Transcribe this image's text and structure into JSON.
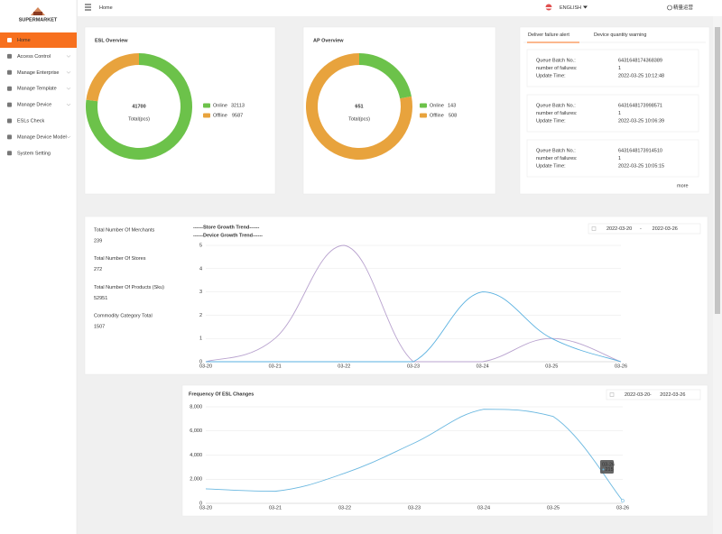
{
  "sidebar": {
    "logo": "SUPERMARKET",
    "menu": [
      "Home",
      "Access Control",
      "Manage Enterprise",
      "Manage Template",
      "Manage Device",
      "ESLs Check",
      "Manage Device Model",
      "System Setting"
    ]
  },
  "header": {
    "breadcrumb": "Home",
    "language": "ENGLISH",
    "user": "精量运营"
  },
  "esl_overview": {
    "title": "ESL Overview",
    "total": 41700,
    "total_label": "Total(pcs)",
    "segments": [
      {
        "name": "Online",
        "value": 32113,
        "color": "#6cc24a"
      },
      {
        "name": "Offline",
        "value": 9587,
        "color": "#e8a33d"
      }
    ]
  },
  "ap_overview": {
    "title": "AP Overview",
    "total": 651,
    "total_label": "Total(pcs)",
    "segments": [
      {
        "name": "Online",
        "value": 143,
        "color": "#6cc24a"
      },
      {
        "name": "Offline",
        "value": 508,
        "color": "#e8a33d"
      }
    ]
  },
  "alerts": {
    "tabs": [
      "Deliver failure alert",
      "Device quantity warning"
    ],
    "field_labels": [
      "Queue Batch No.:",
      "number of failures:",
      "Update Time:"
    ],
    "items": [
      {
        "batch": "6431648174368389",
        "failures": 1,
        "time": "2022-03-25 10:12:48"
      },
      {
        "batch": "6431648173998571",
        "failures": 1,
        "time": "2022-03-25 10:06:39"
      },
      {
        "batch": "6431648173914510",
        "failures": 1,
        "time": "2022-03-25 10:05:15"
      }
    ],
    "more": "more"
  },
  "stats": [
    {
      "label": "Total Number Of Merchants",
      "value": 239
    },
    {
      "label": "Total Number Of Stores",
      "value": 272
    },
    {
      "label": "Total Number Of Products (Sku)",
      "value": 52951
    },
    {
      "label": "Commodity Category Total",
      "value": 1507
    }
  ],
  "growth_chart": {
    "type": "line",
    "date_range": [
      "2022-03-20",
      "2022-03-26"
    ],
    "range_separator": "-",
    "x": [
      "03-20",
      "03-21",
      "03-22",
      "03-23",
      "03-24",
      "03-25",
      "03-26"
    ],
    "series": [
      {
        "name": "------Store Growth Trend------",
        "color": "#b9a3cf",
        "values": [
          0,
          1,
          5,
          0,
          0,
          1,
          0
        ]
      },
      {
        "name": "------Device Growth Trend------",
        "color": "#5ab1e0",
        "values": [
          0,
          0,
          0,
          0,
          3,
          1,
          0
        ]
      }
    ],
    "ylim": [
      0,
      5
    ],
    "yticks": [
      0,
      1,
      2,
      3,
      4,
      5
    ],
    "grid": true
  },
  "frequency_chart": {
    "type": "line",
    "title": "Frequency Of ESL Changes",
    "date_range": [
      "2022-03-20",
      "2022-03-26"
    ],
    "range_separator": "-",
    "x": [
      "03-20",
      "03-21",
      "03-22",
      "03-23",
      "03-24",
      "03-25",
      "03-26"
    ],
    "color": "#6bb8e0",
    "values": [
      1200,
      1000,
      2500,
      5000,
      7800,
      7200,
      215
    ],
    "ylim": [
      0,
      8000
    ],
    "yticks": [
      0,
      {
        "value": 2000,
        "label": "2,000"
      },
      {
        "value": 4000,
        "label": "4,000"
      },
      {
        "value": 6000,
        "label": "6,000"
      },
      {
        "value": 8000,
        "label": "8,000"
      }
    ],
    "grid": true
  }
}
